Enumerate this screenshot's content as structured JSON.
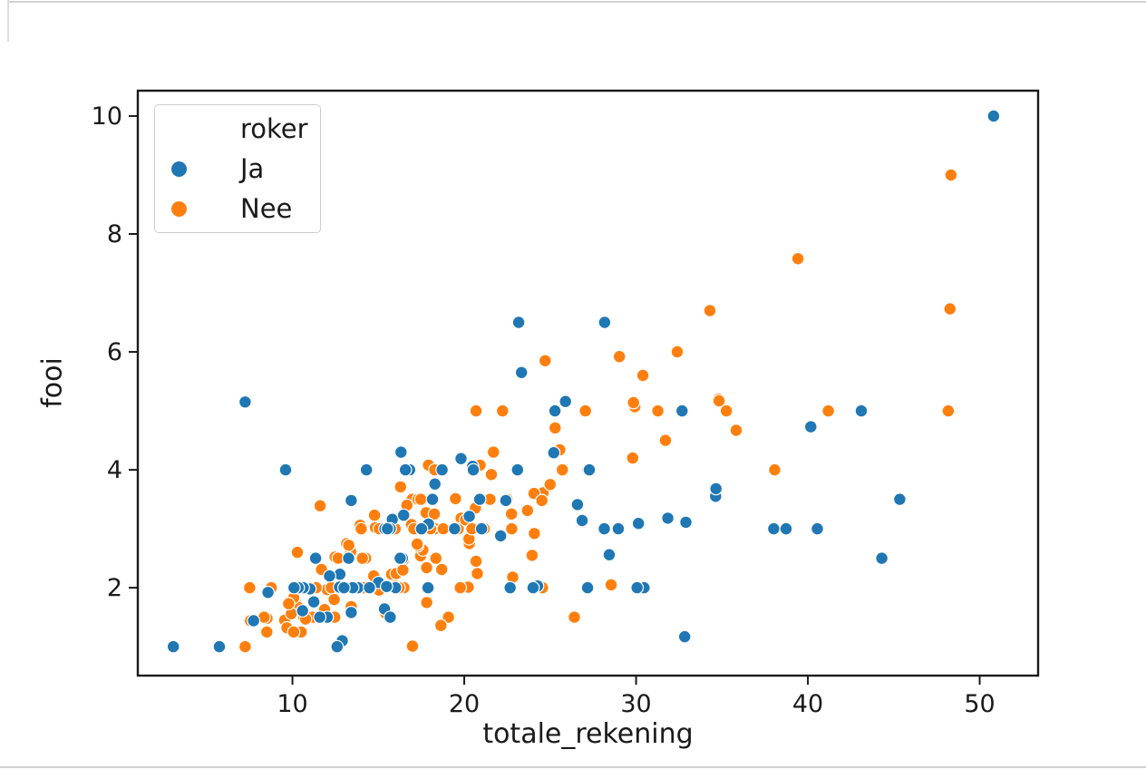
{
  "figure": {
    "background": "#ffffff",
    "text_color": "#1a1a1a"
  },
  "legend": {
    "title": "roker",
    "entries": [
      {
        "label": "Ja",
        "color": "#1f77b4"
      },
      {
        "label": "Nee",
        "color": "#ff7f0e"
      }
    ]
  },
  "chart_data": {
    "type": "scatter",
    "title": "",
    "xlabel": "totale_rekening",
    "ylabel": "fooi",
    "hue_label": "roker",
    "xlim": [
      1.0,
      53.4
    ],
    "ylim": [
      0.51,
      10.43
    ],
    "xticks": [
      10,
      20,
      30,
      40,
      50
    ],
    "yticks": [
      2,
      4,
      6,
      8,
      10
    ],
    "grid": false,
    "legend_position": "upper left",
    "marker": {
      "radius_px": 6.8,
      "edge_color": "#ffffff"
    },
    "series": [
      {
        "name": "Ja",
        "color": "#1f77b4",
        "points": [
          [
            38.01,
            3.0
          ],
          [
            11.24,
            1.76
          ],
          [
            20.29,
            3.21
          ],
          [
            13.81,
            2.0
          ],
          [
            11.02,
            1.98
          ],
          [
            18.29,
            3.76
          ],
          [
            3.07,
            1.0
          ],
          [
            15.01,
            2.09
          ],
          [
            26.86,
            3.14
          ],
          [
            25.28,
            5.0
          ],
          [
            17.92,
            3.08
          ],
          [
            19.44,
            3.0
          ],
          [
            32.68,
            5.0
          ],
          [
            28.97,
            3.0
          ],
          [
            5.75,
            1.0
          ],
          [
            16.32,
            4.3
          ],
          [
            40.17,
            4.73
          ],
          [
            27.28,
            4.0
          ],
          [
            12.03,
            1.5
          ],
          [
            21.01,
            3.0
          ],
          [
            11.35,
            2.5
          ],
          [
            15.38,
            3.0
          ],
          [
            44.3,
            2.5
          ],
          [
            22.42,
            3.48
          ],
          [
            15.36,
            1.64
          ],
          [
            20.49,
            4.06
          ],
          [
            25.21,
            4.29
          ],
          [
            14.31,
            4.0
          ],
          [
            16.0,
            2.0
          ],
          [
            17.51,
            3.0
          ],
          [
            10.59,
            1.61
          ],
          [
            10.63,
            2.0
          ],
          [
            50.81,
            10.0
          ],
          [
            15.81,
            3.16
          ],
          [
            7.25,
            5.15
          ],
          [
            31.85,
            3.18
          ],
          [
            16.82,
            4.0
          ],
          [
            32.9,
            3.11
          ],
          [
            17.89,
            2.0
          ],
          [
            14.48,
            2.0
          ],
          [
            9.6,
            4.0
          ],
          [
            34.63,
            3.55
          ],
          [
            34.65,
            3.68
          ],
          [
            23.33,
            5.65
          ],
          [
            45.35,
            3.5
          ],
          [
            23.17,
            6.5
          ],
          [
            40.55,
            3.0
          ],
          [
            20.9,
            3.5
          ],
          [
            30.46,
            2.0
          ],
          [
            18.15,
            3.5
          ],
          [
            23.1,
            4.0
          ],
          [
            15.69,
            1.5
          ],
          [
            19.81,
            4.19
          ],
          [
            28.44,
            2.56
          ],
          [
            15.48,
            2.02
          ],
          [
            16.58,
            4.0
          ],
          [
            10.34,
            2.0
          ],
          [
            43.11,
            5.0
          ],
          [
            13.0,
            2.0
          ],
          [
            13.51,
            2.0
          ],
          [
            18.71,
            4.0
          ],
          [
            12.74,
            2.01
          ],
          [
            13.0,
            2.0
          ],
          [
            16.4,
            2.5
          ],
          [
            20.53,
            4.0
          ],
          [
            16.47,
            3.23
          ],
          [
            26.59,
            3.41
          ],
          [
            38.73,
            3.0
          ],
          [
            24.27,
            2.03
          ],
          [
            12.76,
            2.23
          ],
          [
            30.06,
            2.0
          ],
          [
            25.89,
            5.16
          ],
          [
            13.27,
            2.5
          ],
          [
            28.17,
            6.5
          ],
          [
            12.9,
            1.1
          ],
          [
            28.15,
            3.0
          ],
          [
            11.59,
            1.5
          ],
          [
            7.74,
            1.44
          ],
          [
            30.14,
            3.09
          ],
          [
            12.16,
            2.2
          ],
          [
            13.42,
            3.48
          ],
          [
            8.58,
            1.92
          ],
          [
            13.42,
            1.58
          ],
          [
            16.27,
            2.5
          ],
          [
            10.09,
            2.0
          ],
          [
            22.12,
            2.88
          ],
          [
            24.01,
            2.0
          ],
          [
            15.69,
            3.0
          ],
          [
            15.53,
            3.0
          ],
          [
            12.6,
            1.0
          ],
          [
            32.83,
            1.17
          ],
          [
            27.18,
            2.0
          ],
          [
            22.67,
            2.0
          ]
        ]
      },
      {
        "name": "Nee",
        "color": "#ff7f0e",
        "points": [
          [
            16.99,
            1.01
          ],
          [
            10.34,
            1.66
          ],
          [
            21.01,
            3.5
          ],
          [
            23.68,
            3.31
          ],
          [
            24.59,
            3.61
          ],
          [
            25.29,
            4.71
          ],
          [
            8.77,
            2.0
          ],
          [
            26.88,
            3.12
          ],
          [
            15.04,
            1.96
          ],
          [
            14.78,
            3.23
          ],
          [
            10.27,
            1.71
          ],
          [
            35.26,
            5.0
          ],
          [
            15.42,
            1.57
          ],
          [
            18.43,
            3.0
          ],
          [
            14.83,
            3.02
          ],
          [
            21.58,
            3.92
          ],
          [
            10.33,
            1.67
          ],
          [
            16.29,
            3.71
          ],
          [
            16.97,
            3.5
          ],
          [
            20.65,
            3.35
          ],
          [
            17.92,
            4.08
          ],
          [
            20.29,
            2.75
          ],
          [
            15.77,
            2.23
          ],
          [
            39.42,
            7.58
          ],
          [
            19.82,
            3.18
          ],
          [
            17.81,
            2.34
          ],
          [
            13.37,
            2.0
          ],
          [
            12.69,
            2.0
          ],
          [
            21.7,
            4.3
          ],
          [
            19.65,
            3.0
          ],
          [
            9.55,
            1.45
          ],
          [
            18.35,
            2.5
          ],
          [
            15.06,
            3.0
          ],
          [
            20.69,
            2.45
          ],
          [
            17.78,
            3.27
          ],
          [
            24.06,
            3.6
          ],
          [
            16.31,
            2.0
          ],
          [
            16.93,
            3.07
          ],
          [
            18.69,
            2.31
          ],
          [
            31.27,
            5.0
          ],
          [
            16.04,
            2.24
          ],
          [
            17.46,
            2.54
          ],
          [
            13.94,
            3.06
          ],
          [
            9.68,
            1.32
          ],
          [
            30.4,
            5.6
          ],
          [
            18.29,
            3.0
          ],
          [
            22.23,
            5.0
          ],
          [
            32.4,
            6.0
          ],
          [
            28.55,
            2.05
          ],
          [
            18.04,
            3.0
          ],
          [
            12.54,
            2.5
          ],
          [
            10.29,
            2.6
          ],
          [
            34.81,
            5.2
          ],
          [
            9.94,
            1.56
          ],
          [
            25.56,
            4.34
          ],
          [
            19.49,
            3.51
          ],
          [
            26.41,
            1.5
          ],
          [
            48.27,
            6.73
          ],
          [
            17.59,
            2.64
          ],
          [
            20.08,
            3.15
          ],
          [
            16.45,
            2.47
          ],
          [
            20.23,
            2.01
          ],
          [
            12.02,
            1.97
          ],
          [
            17.07,
            3.0
          ],
          [
            14.73,
            2.2
          ],
          [
            10.51,
            1.25
          ],
          [
            27.2,
            4.0
          ],
          [
            22.76,
            3.0
          ],
          [
            17.29,
            2.71
          ],
          [
            16.66,
            3.4
          ],
          [
            10.07,
            1.83
          ],
          [
            15.98,
            2.03
          ],
          [
            34.83,
            5.17
          ],
          [
            13.03,
            2.0
          ],
          [
            18.28,
            4.0
          ],
          [
            24.71,
            5.85
          ],
          [
            21.16,
            3.0
          ],
          [
            22.49,
            3.5
          ],
          [
            22.75,
            3.25
          ],
          [
            12.46,
            1.5
          ],
          [
            20.92,
            4.08
          ],
          [
            18.24,
            3.76
          ],
          [
            14.0,
            3.0
          ],
          [
            7.25,
            1.0
          ],
          [
            38.07,
            4.0
          ],
          [
            23.95,
            2.55
          ],
          [
            25.71,
            4.0
          ],
          [
            17.31,
            3.5
          ],
          [
            29.93,
            5.07
          ],
          [
            10.65,
            1.5
          ],
          [
            12.43,
            1.8
          ],
          [
            24.08,
            2.92
          ],
          [
            11.69,
            2.31
          ],
          [
            13.42,
            1.68
          ],
          [
            14.26,
            2.5
          ],
          [
            15.95,
            2.0
          ],
          [
            12.48,
            2.52
          ],
          [
            29.8,
            4.2
          ],
          [
            8.52,
            1.48
          ],
          [
            14.52,
            2.0
          ],
          [
            11.38,
            2.0
          ],
          [
            22.82,
            2.18
          ],
          [
            19.08,
            1.5
          ],
          [
            20.27,
            2.83
          ],
          [
            11.17,
            1.5
          ],
          [
            12.26,
            2.0
          ],
          [
            18.26,
            3.25
          ],
          [
            8.51,
            1.25
          ],
          [
            10.33,
            2.0
          ],
          [
            14.15,
            2.0
          ],
          [
            13.16,
            2.75
          ],
          [
            17.47,
            3.5
          ],
          [
            34.3,
            6.7
          ],
          [
            41.19,
            5.0
          ],
          [
            27.05,
            5.0
          ],
          [
            16.43,
            2.3
          ],
          [
            8.35,
            1.5
          ],
          [
            18.64,
            1.36
          ],
          [
            11.87,
            1.63
          ],
          [
            9.78,
            1.73
          ],
          [
            7.51,
            2.0
          ],
          [
            14.07,
            2.5
          ],
          [
            13.13,
            2.0
          ],
          [
            17.26,
            2.74
          ],
          [
            24.55,
            2.0
          ],
          [
            19.77,
            2.0
          ],
          [
            29.85,
            5.14
          ],
          [
            48.17,
            5.0
          ],
          [
            25.0,
            3.75
          ],
          [
            13.39,
            2.61
          ],
          [
            16.49,
            2.0
          ],
          [
            21.5,
            3.5
          ],
          [
            12.66,
            2.5
          ],
          [
            16.21,
            2.0
          ],
          [
            13.81,
            2.0
          ],
          [
            24.52,
            3.48
          ],
          [
            20.76,
            2.24
          ],
          [
            31.71,
            4.5
          ],
          [
            20.69,
            5.0
          ],
          [
            7.56,
            1.44
          ],
          [
            48.33,
            9.0
          ],
          [
            15.98,
            3.0
          ],
          [
            20.45,
            3.0
          ],
          [
            13.28,
            2.72
          ],
          [
            11.61,
            3.39
          ],
          [
            10.77,
            1.47
          ],
          [
            10.07,
            1.25
          ],
          [
            35.83,
            4.67
          ],
          [
            29.03,
            5.92
          ],
          [
            17.82,
            1.75
          ],
          [
            18.78,
            3.0
          ]
        ]
      }
    ]
  }
}
